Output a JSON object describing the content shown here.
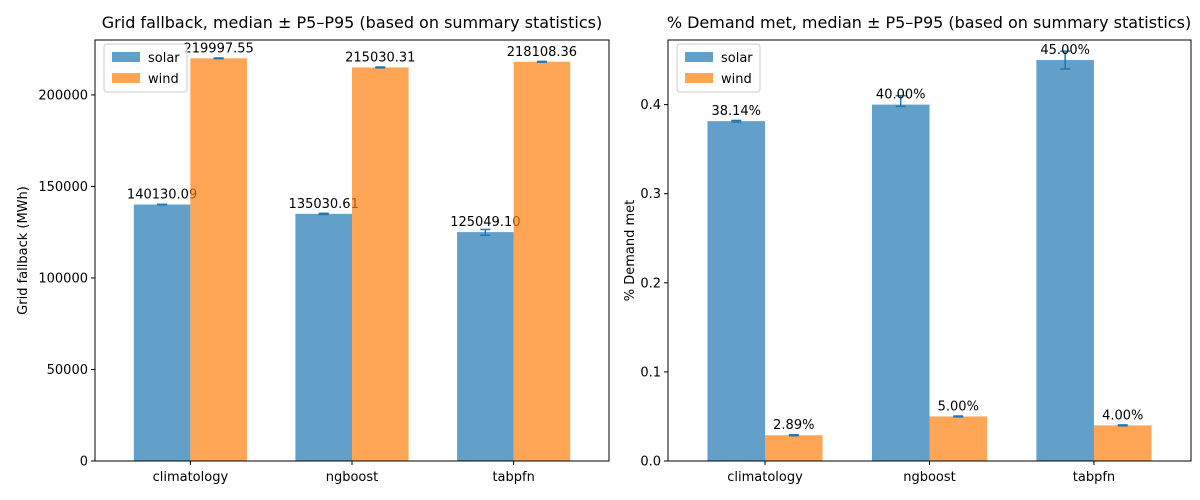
{
  "chart_data": [
    {
      "type": "bar",
      "title": "Grid fallback, median ± P5–P95 (based on summary statistics)",
      "xlabel": "",
      "ylabel": "Grid fallback (MWh)",
      "ylim": [
        0,
        230000
      ],
      "yticks": [
        0,
        50000,
        100000,
        150000,
        200000
      ],
      "ytick_labels": [
        "0",
        "50000",
        "100000",
        "150000",
        "200000"
      ],
      "categories": [
        "climatology",
        "ngboost",
        "tabpfn"
      ],
      "legend_position": "top-left",
      "grid": false,
      "series": [
        {
          "name": "solar",
          "color": "#1f77b4",
          "values": [
            140130.09,
            135030.61,
            125049.1
          ],
          "p5": [
            140000,
            134700,
            123300
          ],
          "p95": [
            140250,
            135300,
            126500
          ],
          "labels": [
            "140130.09",
            "135030.61",
            "125049.10"
          ]
        },
        {
          "name": "wind",
          "color": "#ff7f0e",
          "values": [
            219997.55,
            215030.31,
            218108.36
          ],
          "p5": [
            219800,
            214800,
            217900
          ],
          "p95": [
            220200,
            215250,
            218300
          ],
          "labels": [
            "219997.55",
            "215030.31",
            "218108.36"
          ]
        }
      ]
    },
    {
      "type": "bar",
      "title": "% Demand met, median ± P5–P95 (based on summary statistics)",
      "xlabel": "",
      "ylabel": "% Demand met",
      "ylim": [
        0,
        0.4725
      ],
      "yticks": [
        0,
        0.1,
        0.2,
        0.3,
        0.4
      ],
      "ytick_labels": [
        "0.0",
        "0.1",
        "0.2",
        "0.3",
        "0.4"
      ],
      "categories": [
        "climatology",
        "ngboost",
        "tabpfn"
      ],
      "legend_position": "top-left",
      "grid": false,
      "series": [
        {
          "name": "solar",
          "color": "#1f77b4",
          "values": [
            0.3814,
            0.4,
            0.45
          ],
          "p5": [
            0.3805,
            0.398,
            0.44
          ],
          "p95": [
            0.3822,
            0.41,
            0.46
          ],
          "labels": [
            "38.14%",
            "40.00%",
            "45.00%"
          ]
        },
        {
          "name": "wind",
          "color": "#ff7f0e",
          "values": [
            0.0289,
            0.05,
            0.04
          ],
          "p5": [
            0.0284,
            0.0495,
            0.0395
          ],
          "p95": [
            0.0294,
            0.0505,
            0.0405
          ],
          "labels": [
            "2.89%",
            "5.00%",
            "4.00%"
          ]
        }
      ]
    }
  ]
}
